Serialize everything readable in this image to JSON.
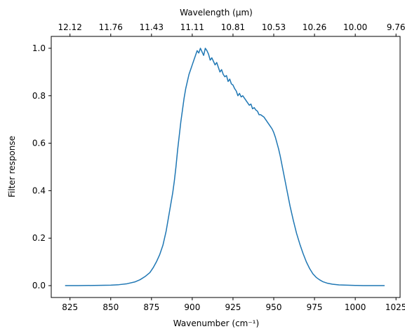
{
  "chart_data": {
    "type": "line",
    "xlabel": "Wavenumber (cm⁻¹)",
    "ylabel": "Filter response",
    "top_xlabel": "Wavelength (μm)",
    "xlim": [
      813.5,
      1027.5
    ],
    "ylim": [
      -0.05,
      1.05
    ],
    "xticks": [
      825,
      850,
      875,
      900,
      925,
      950,
      975,
      1000,
      1025
    ],
    "xtick_labels": [
      "825",
      "850",
      "875",
      "900",
      "925",
      "950",
      "975",
      "1000",
      "1025"
    ],
    "yticks": [
      0.0,
      0.2,
      0.4,
      0.6,
      0.8,
      1.0
    ],
    "ytick_labels": [
      "0.0",
      "0.2",
      "0.4",
      "0.6",
      "0.8",
      "1.0"
    ],
    "top_xticks": [
      825,
      850,
      875,
      900,
      925,
      950,
      975,
      1000,
      1025
    ],
    "top_xtick_labels": [
      "12.12",
      "11.76",
      "11.43",
      "11.11",
      "10.81",
      "10.53",
      "10.26",
      "10.00",
      "9.76"
    ],
    "grid": false,
    "series": [
      {
        "color": "#1f77b4",
        "x": [
          822,
          830,
          840,
          850,
          855,
          860,
          865,
          868,
          871,
          874,
          876,
          878,
          880,
          882,
          884,
          886,
          888,
          889,
          890,
          891,
          892,
          893,
          894,
          895,
          896,
          897,
          898,
          899,
          900,
          901,
          902,
          903,
          904,
          905,
          906,
          907,
          908,
          909,
          910,
          911,
          912,
          913,
          914,
          915,
          916,
          917,
          918,
          919,
          920,
          921,
          922,
          923,
          924,
          925,
          926,
          927,
          928,
          929,
          930,
          931,
          932,
          933,
          934,
          935,
          936,
          937,
          938,
          939,
          940,
          941,
          942,
          943,
          944,
          945,
          946,
          947,
          948,
          949,
          950,
          951,
          952,
          953,
          954,
          955,
          956,
          957,
          958,
          959,
          960,
          962,
          964,
          966,
          968,
          970,
          972,
          974,
          976,
          978,
          980,
          983,
          986,
          990,
          995,
          1000,
          1005,
          1010,
          1018
        ],
        "y": [
          0.0,
          0.0,
          0.001,
          0.002,
          0.004,
          0.008,
          0.016,
          0.025,
          0.038,
          0.055,
          0.075,
          0.1,
          0.13,
          0.17,
          0.23,
          0.31,
          0.39,
          0.44,
          0.5,
          0.57,
          0.63,
          0.69,
          0.74,
          0.79,
          0.83,
          0.86,
          0.89,
          0.91,
          0.93,
          0.95,
          0.97,
          0.99,
          0.98,
          1.0,
          0.985,
          0.97,
          1.0,
          0.99,
          0.975,
          0.95,
          0.96,
          0.945,
          0.93,
          0.94,
          0.92,
          0.9,
          0.91,
          0.89,
          0.88,
          0.885,
          0.86,
          0.87,
          0.85,
          0.845,
          0.83,
          0.82,
          0.8,
          0.81,
          0.795,
          0.8,
          0.79,
          0.78,
          0.77,
          0.76,
          0.765,
          0.745,
          0.75,
          0.74,
          0.735,
          0.72,
          0.72,
          0.715,
          0.71,
          0.7,
          0.69,
          0.68,
          0.67,
          0.66,
          0.645,
          0.625,
          0.6,
          0.575,
          0.545,
          0.51,
          0.475,
          0.44,
          0.405,
          0.37,
          0.335,
          0.275,
          0.22,
          0.175,
          0.135,
          0.1,
          0.072,
          0.05,
          0.035,
          0.025,
          0.017,
          0.01,
          0.006,
          0.003,
          0.002,
          0.001,
          0.0,
          0.0,
          0.0
        ]
      }
    ]
  }
}
